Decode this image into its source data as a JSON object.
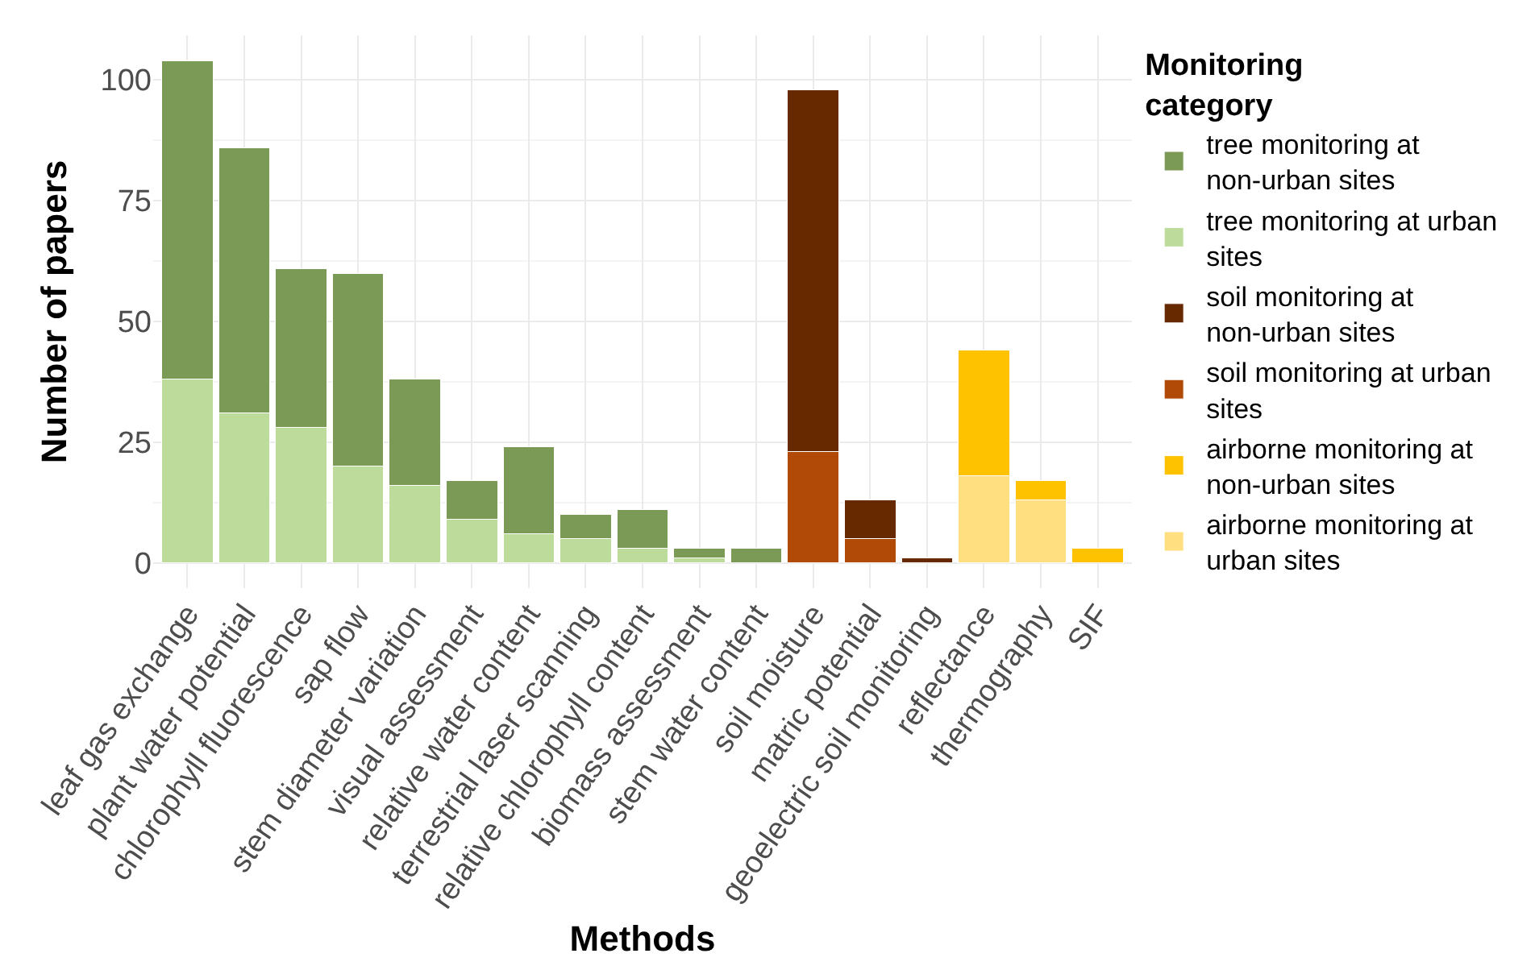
{
  "chart_data": {
    "type": "bar",
    "stacked": true,
    "xlabel": "Methods",
    "ylabel": "Number of papers",
    "legend_title": "Monitoring category",
    "legend": "right",
    "grid": true,
    "categories": [
      "leaf gas exchange",
      "plant water potential",
      "chlorophyll fluorescence",
      "sap flow",
      "stem diameter variation",
      "visual assessment",
      "relative water content",
      "terrestrial laser scanning",
      "relative chlorophyll content",
      "biomass assessment",
      "stem water content",
      "soil moisture",
      "matric potential",
      "geoelectric soil monitoring",
      "reflectance",
      "thermography",
      "SIF"
    ],
    "ylim": [
      -5.2,
      109.2
    ],
    "yticks": [
      0,
      25,
      50,
      75,
      100
    ],
    "series": [
      {
        "name": "tree monitoring at urban sites",
        "color": "#bddc9c",
        "values": [
          38,
          31,
          28,
          20,
          16,
          9,
          6,
          5,
          3,
          1,
          0,
          null,
          null,
          null,
          null,
          null,
          null
        ]
      },
      {
        "name": "tree monitoring at non-urban sites",
        "color": "#7a9a56",
        "values": [
          66,
          55,
          33,
          40,
          22,
          8,
          18,
          5,
          8,
          2,
          3,
          null,
          null,
          null,
          null,
          null,
          null
        ]
      },
      {
        "name": "soil monitoring at urban sites",
        "color": "#b04a06",
        "values": [
          null,
          null,
          null,
          null,
          null,
          null,
          null,
          null,
          null,
          null,
          null,
          23,
          5,
          0,
          null,
          null,
          null
        ]
      },
      {
        "name": "soil monitoring at non-urban sites",
        "color": "#662900",
        "values": [
          null,
          null,
          null,
          null,
          null,
          null,
          null,
          null,
          null,
          null,
          null,
          75,
          8,
          1,
          null,
          null,
          null
        ]
      },
      {
        "name": "airborne monitoring at urban sites",
        "color": "#ffdf80",
        "values": [
          null,
          null,
          null,
          null,
          null,
          null,
          null,
          null,
          null,
          null,
          null,
          null,
          null,
          null,
          18,
          13,
          0
        ]
      },
      {
        "name": "airborne monitoring at non-urban sites",
        "color": "#ffc200",
        "values": [
          null,
          null,
          null,
          null,
          null,
          null,
          null,
          null,
          null,
          null,
          null,
          null,
          null,
          null,
          26,
          4,
          3
        ]
      }
    ]
  }
}
